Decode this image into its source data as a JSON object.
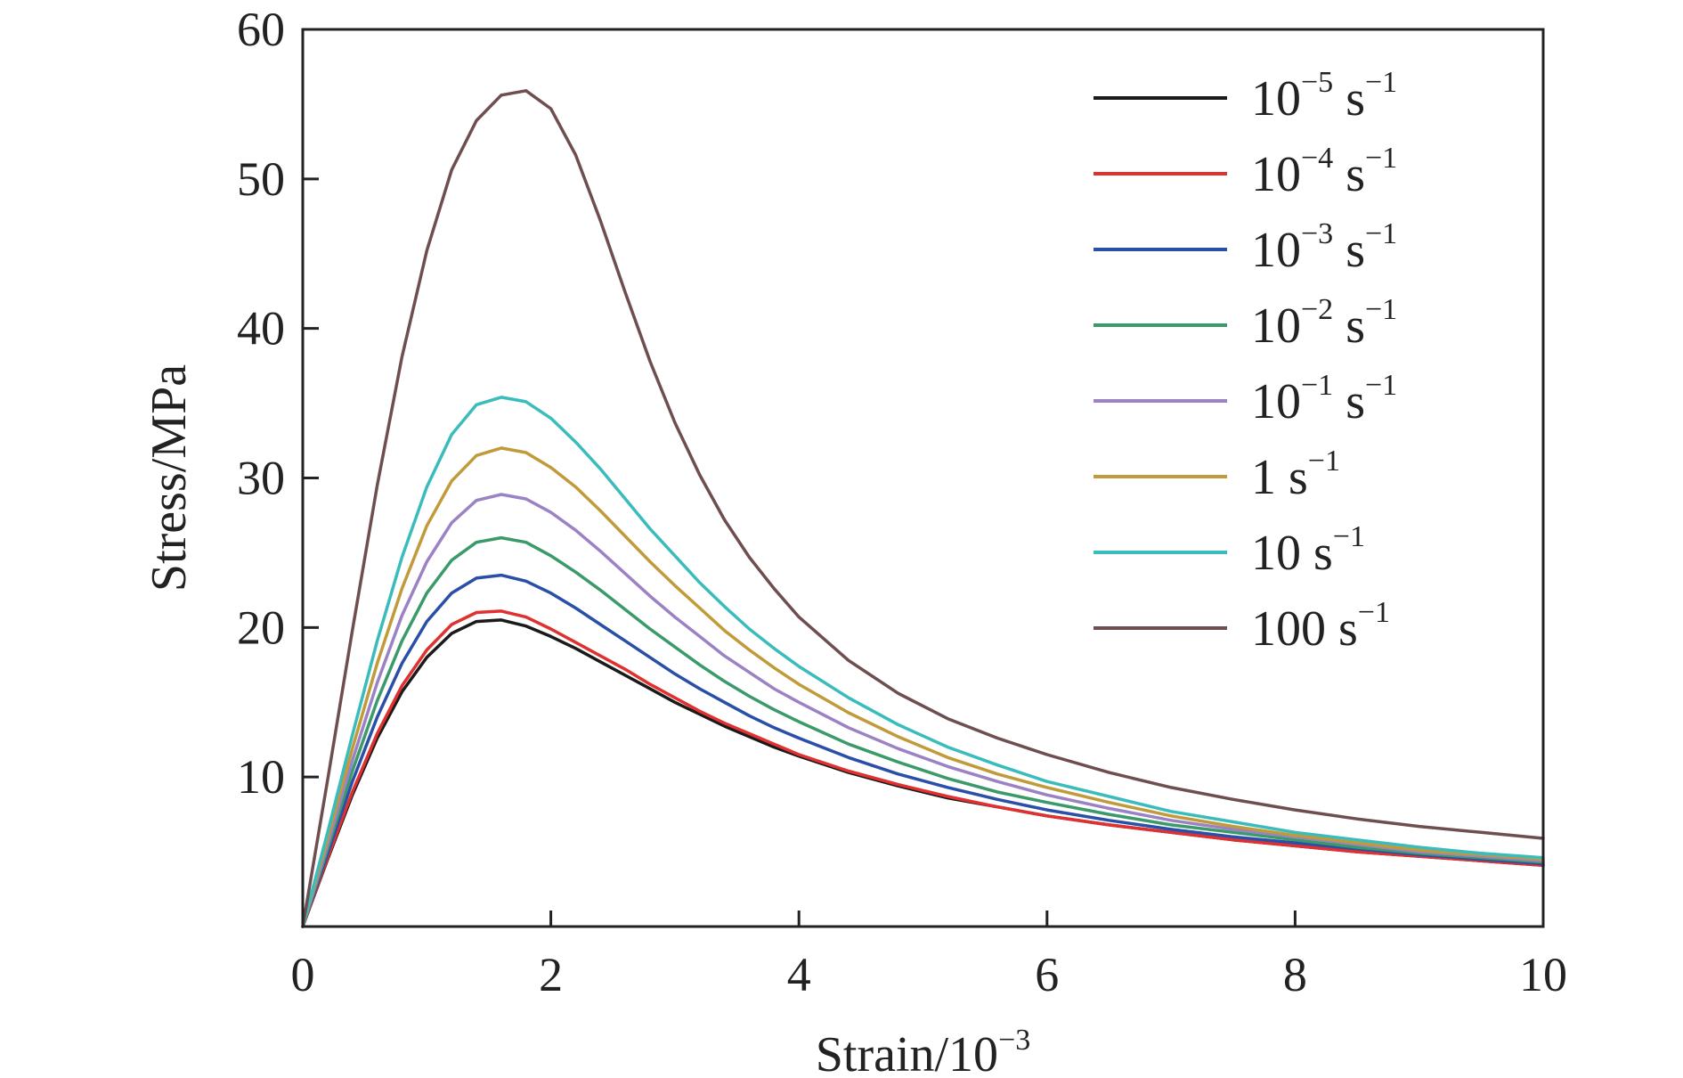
{
  "chart_data": {
    "type": "line",
    "xlabel": {
      "base": "Strain/10",
      "exp": "−3"
    },
    "ylabel": "Stress/MPa",
    "xlim": [
      0,
      10
    ],
    "ylim": [
      0,
      60
    ],
    "xticks": [
      0,
      2,
      4,
      6,
      8,
      10
    ],
    "yticks": [
      10,
      20,
      30,
      40,
      50,
      60
    ],
    "xtick_labels": [
      "0",
      "2",
      "4",
      "6",
      "8",
      "10"
    ],
    "ytick_labels": [
      "10",
      "20",
      "30",
      "40",
      "50",
      "60"
    ],
    "grid": false,
    "legend_position": "top-right",
    "x": [
      0,
      0.2,
      0.4,
      0.6,
      0.8,
      1.0,
      1.2,
      1.4,
      1.6,
      1.8,
      2.0,
      2.2,
      2.4,
      2.6,
      2.8,
      3.0,
      3.2,
      3.4,
      3.6,
      3.8,
      4.0,
      4.4,
      4.8,
      5.2,
      5.6,
      6.0,
      6.5,
      7.0,
      7.5,
      8.0,
      8.5,
      9.0,
      9.5,
      10.0
    ],
    "series": [
      {
        "name": {
          "base": "10",
          "exp": "−5",
          "unit": " s",
          "unit_exp": "−1"
        },
        "color": "#1a1a1a",
        "values": [
          0,
          4.5,
          8.8,
          12.6,
          15.7,
          18.0,
          19.6,
          20.4,
          20.5,
          20.1,
          19.4,
          18.6,
          17.7,
          16.8,
          15.9,
          15.0,
          14.2,
          13.4,
          12.7,
          12.0,
          11.4,
          10.3,
          9.4,
          8.6,
          8.0,
          7.4,
          6.8,
          6.3,
          5.8,
          5.4,
          5.0,
          4.7,
          4.4,
          4.1
        ]
      },
      {
        "name": {
          "base": "10",
          "exp": "−4",
          "unit": " s",
          "unit_exp": "−1"
        },
        "color": "#e03030",
        "values": [
          0,
          4.6,
          9.0,
          12.9,
          16.1,
          18.5,
          20.2,
          21.0,
          21.1,
          20.7,
          19.9,
          19.0,
          18.1,
          17.2,
          16.2,
          15.3,
          14.4,
          13.6,
          12.9,
          12.2,
          11.5,
          10.4,
          9.5,
          8.7,
          8.0,
          7.4,
          6.8,
          6.3,
          5.8,
          5.4,
          5.0,
          4.7,
          4.4,
          4.1
        ]
      },
      {
        "name": {
          "base": "10",
          "exp": "−3",
          "unit": " s",
          "unit_exp": "−1"
        },
        "color": "#2a4fa8",
        "values": [
          0,
          4.9,
          9.7,
          14.0,
          17.6,
          20.4,
          22.3,
          23.3,
          23.5,
          23.1,
          22.3,
          21.3,
          20.2,
          19.1,
          18.0,
          16.9,
          15.9,
          15.0,
          14.1,
          13.3,
          12.6,
          11.3,
          10.2,
          9.3,
          8.5,
          7.8,
          7.1,
          6.5,
          6.0,
          5.6,
          5.2,
          4.8,
          4.5,
          4.2
        ]
      },
      {
        "name": {
          "base": "10",
          "exp": "−2",
          "unit": " s",
          "unit_exp": "−1"
        },
        "color": "#3a9a6a",
        "values": [
          0,
          5.2,
          10.4,
          15.1,
          19.1,
          22.3,
          24.5,
          25.7,
          26.0,
          25.7,
          24.8,
          23.7,
          22.5,
          21.2,
          19.9,
          18.7,
          17.5,
          16.4,
          15.4,
          14.5,
          13.7,
          12.2,
          11.0,
          9.9,
          9.0,
          8.3,
          7.5,
          6.8,
          6.3,
          5.8,
          5.3,
          4.9,
          4.6,
          4.3
        ]
      },
      {
        "name": {
          "base": "10",
          "exp": "−1",
          "unit": " s",
          "unit_exp": "−1"
        },
        "color": "#9b82c4",
        "values": [
          0,
          5.5,
          11.1,
          16.3,
          20.8,
          24.4,
          27.0,
          28.5,
          28.9,
          28.6,
          27.7,
          26.5,
          25.1,
          23.6,
          22.1,
          20.7,
          19.4,
          18.1,
          17.0,
          15.9,
          15.0,
          13.3,
          11.9,
          10.7,
          9.7,
          8.8,
          7.9,
          7.1,
          6.5,
          6.0,
          5.5,
          5.0,
          4.7,
          4.4
        ]
      },
      {
        "name": {
          "base": "1",
          "exp": "",
          "unit": " s",
          "unit_exp": "−1"
        },
        "color": "#c19a3a",
        "values": [
          0,
          5.9,
          11.9,
          17.6,
          22.6,
          26.8,
          29.8,
          31.5,
          32.0,
          31.7,
          30.7,
          29.4,
          27.8,
          26.1,
          24.4,
          22.8,
          21.3,
          19.8,
          18.5,
          17.3,
          16.2,
          14.3,
          12.7,
          11.3,
          10.2,
          9.3,
          8.3,
          7.4,
          6.7,
          6.1,
          5.6,
          5.1,
          4.8,
          4.5
        ]
      },
      {
        "name": {
          "base": "10",
          "exp": "",
          "unit": " s",
          "unit_exp": "−1"
        },
        "color": "#3bbcbc",
        "values": [
          0,
          6.3,
          12.8,
          19.1,
          24.7,
          29.4,
          32.9,
          34.9,
          35.4,
          35.1,
          34.0,
          32.4,
          30.6,
          28.6,
          26.6,
          24.8,
          23.0,
          21.4,
          19.9,
          18.6,
          17.4,
          15.3,
          13.5,
          12.0,
          10.8,
          9.7,
          8.7,
          7.7,
          7.0,
          6.3,
          5.8,
          5.3,
          4.9,
          4.6
        ]
      },
      {
        "name": {
          "base": "100",
          "exp": "",
          "unit": " s",
          "unit_exp": "−1"
        },
        "color": "#6e4e4e",
        "values": [
          0,
          9.8,
          19.8,
          29.5,
          38.1,
          45.2,
          50.6,
          53.9,
          55.6,
          55.9,
          54.7,
          51.6,
          47.2,
          42.4,
          37.8,
          33.7,
          30.2,
          27.2,
          24.7,
          22.6,
          20.7,
          17.8,
          15.6,
          13.9,
          12.6,
          11.5,
          10.3,
          9.3,
          8.5,
          7.8,
          7.2,
          6.7,
          6.3,
          5.9
        ]
      }
    ]
  }
}
